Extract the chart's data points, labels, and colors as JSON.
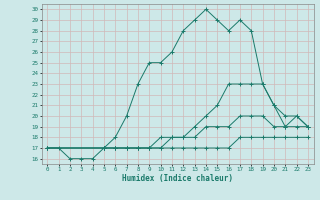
{
  "xlabel": "Humidex (Indice chaleur)",
  "ylabel": "",
  "bg_color": "#cde8e8",
  "grid_color": "#b8d8d8",
  "line_color": "#1a7a6a",
  "xlim": [
    -0.5,
    23.5
  ],
  "ylim": [
    15.5,
    30.5
  ],
  "xticks": [
    0,
    1,
    2,
    3,
    4,
    5,
    6,
    7,
    8,
    9,
    10,
    11,
    12,
    13,
    14,
    15,
    16,
    17,
    18,
    19,
    20,
    21,
    22,
    23
  ],
  "yticks": [
    16,
    17,
    18,
    19,
    20,
    21,
    22,
    23,
    24,
    25,
    26,
    27,
    28,
    29,
    30
  ],
  "line1_x": [
    0,
    1,
    2,
    3,
    4,
    5,
    6,
    7,
    8,
    9,
    10,
    11,
    12,
    13,
    14,
    15,
    16,
    17,
    18,
    19,
    20,
    21,
    22,
    23
  ],
  "line1_y": [
    17,
    17,
    16,
    16,
    16,
    17,
    18,
    20,
    23,
    25,
    25,
    26,
    28,
    29,
    30,
    29,
    28,
    29,
    28,
    23,
    21,
    19,
    20,
    19
  ],
  "line2_x": [
    0,
    5,
    6,
    7,
    8,
    9,
    10,
    11,
    12,
    13,
    14,
    15,
    16,
    17,
    18,
    19,
    20,
    21,
    22,
    23
  ],
  "line2_y": [
    17,
    17,
    17,
    17,
    17,
    17,
    18,
    18,
    18,
    19,
    20,
    21,
    23,
    23,
    23,
    23,
    21,
    20,
    20,
    19
  ],
  "line3_x": [
    0,
    5,
    6,
    7,
    8,
    9,
    10,
    11,
    12,
    13,
    14,
    15,
    16,
    17,
    18,
    19,
    20,
    21,
    22,
    23
  ],
  "line3_y": [
    17,
    17,
    17,
    17,
    17,
    17,
    17,
    18,
    18,
    18,
    19,
    19,
    19,
    20,
    20,
    20,
    19,
    19,
    19,
    19
  ],
  "line4_x": [
    0,
    5,
    6,
    7,
    8,
    9,
    10,
    11,
    12,
    13,
    14,
    15,
    16,
    17,
    18,
    19,
    20,
    21,
    22,
    23
  ],
  "line4_y": [
    17,
    17,
    17,
    17,
    17,
    17,
    17,
    17,
    17,
    17,
    17,
    17,
    17,
    18,
    18,
    18,
    18,
    18,
    18,
    18
  ]
}
